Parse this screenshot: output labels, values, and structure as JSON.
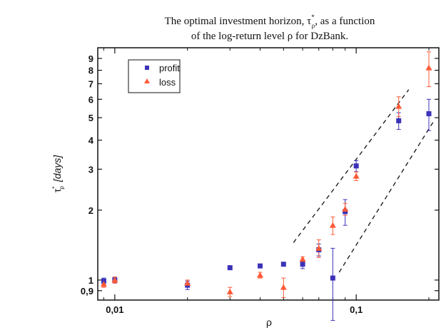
{
  "chart_data": {
    "type": "scatter",
    "title_line1_before": "The optimal investment horizon, τ",
    "title_line1_sup": "*",
    "title_line1_sub": "ρ",
    "title_line1_after": ", as a function",
    "title_line2": "of the log-return level ρ for DzBank.",
    "xlabel": "ρ",
    "ylabel_main": "τ",
    "ylabel_sup": "*",
    "ylabel_sub": "ρ",
    "ylabel_units": "[days]",
    "x_scale": "log",
    "y_scale": "log",
    "xlim": [
      0.0085,
      0.22
    ],
    "ylim": [
      0.82,
      10.0
    ],
    "x_ticks": [
      {
        "value": 0.01,
        "label": "0,01"
      },
      {
        "value": 0.1,
        "label": "0,1"
      }
    ],
    "y_ticks": [
      {
        "value": 0.9,
        "label": "0,9"
      },
      {
        "value": 1,
        "label": "1"
      },
      {
        "value": 2,
        "label": "2"
      },
      {
        "value": 3,
        "label": "3"
      },
      {
        "value": 4,
        "label": "4"
      },
      {
        "value": 5,
        "label": "5"
      },
      {
        "value": 6,
        "label": "6"
      },
      {
        "value": 7,
        "label": "7"
      },
      {
        "value": 8,
        "label": "8"
      },
      {
        "value": 9,
        "label": "9"
      }
    ],
    "legend_position": "top-left",
    "series": [
      {
        "name": "profit",
        "marker": "square",
        "color": "#3b32b8",
        "points": [
          {
            "x": 0.009,
            "y": 0.99,
            "err": 0.03
          },
          {
            "x": 0.01,
            "y": 1.0,
            "err": 0.03
          },
          {
            "x": 0.02,
            "y": 0.95,
            "err": 0.04
          },
          {
            "x": 0.03,
            "y": 1.13,
            "err": 0.0
          },
          {
            "x": 0.04,
            "y": 1.15,
            "err": 0.0
          },
          {
            "x": 0.05,
            "y": 1.17,
            "err": 0.02
          },
          {
            "x": 0.06,
            "y": 1.17,
            "err": 0.05
          },
          {
            "x": 0.07,
            "y": 1.35,
            "err": 0.08
          },
          {
            "x": 0.08,
            "y": 1.02,
            "err": 0.35
          },
          {
            "x": 0.09,
            "y": 1.97,
            "err": 0.25
          },
          {
            "x": 0.1,
            "y": 3.1,
            "err": 0.17
          },
          {
            "x": 0.15,
            "y": 4.85,
            "err": 0.4
          },
          {
            "x": 0.2,
            "y": 5.2,
            "err": 0.8
          }
        ]
      },
      {
        "name": "loss",
        "marker": "triangle",
        "color": "#ff5a36",
        "points": [
          {
            "x": 0.009,
            "y": 0.96,
            "err": 0.03
          },
          {
            "x": 0.01,
            "y": 1.0,
            "err": 0.03
          },
          {
            "x": 0.02,
            "y": 0.97,
            "err": 0.03
          },
          {
            "x": 0.03,
            "y": 0.89,
            "err": 0.04
          },
          {
            "x": 0.04,
            "y": 1.05,
            "err": 0.03
          },
          {
            "x": 0.05,
            "y": 0.93,
            "err": 0.09
          },
          {
            "x": 0.06,
            "y": 1.23,
            "err": 0.03
          },
          {
            "x": 0.07,
            "y": 1.37,
            "err": 0.12
          },
          {
            "x": 0.08,
            "y": 1.72,
            "err": 0.15
          },
          {
            "x": 0.09,
            "y": 2.02,
            "err": 0.12
          },
          {
            "x": 0.1,
            "y": 2.8,
            "err": 0.12
          },
          {
            "x": 0.15,
            "y": 5.6,
            "err": 0.55
          },
          {
            "x": 0.2,
            "y": 8.2,
            "err": 1.4
          }
        ]
      }
    ],
    "guide_lines": [
      {
        "style": "dashed",
        "x1": 0.055,
        "y1": 1.45,
        "x2": 0.165,
        "y2": 6.6
      },
      {
        "style": "dashed",
        "x1": 0.085,
        "y1": 1.08,
        "x2": 0.21,
        "y2": 4.85
      }
    ]
  }
}
